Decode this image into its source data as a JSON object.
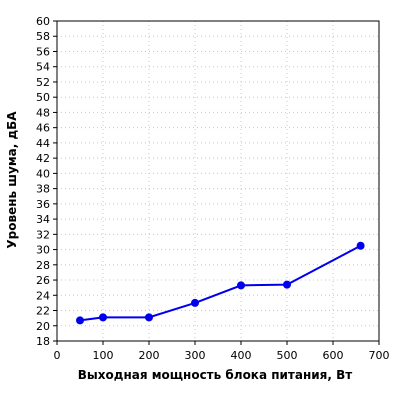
{
  "chart_data": {
    "type": "line",
    "title": "",
    "xlabel": "Выходная мощность блока питания, Вт",
    "ylabel": "Уровень шума, дБА",
    "xlim": [
      0,
      700
    ],
    "ylim": [
      18,
      60
    ],
    "x_ticks": [
      "0",
      "100",
      "200",
      "300",
      "400",
      "500",
      "600",
      "700"
    ],
    "y_ticks": [
      "18",
      "20",
      "22",
      "24",
      "26",
      "28",
      "30",
      "32",
      "34",
      "36",
      "38",
      "40",
      "42",
      "44",
      "46",
      "48",
      "50",
      "52",
      "54",
      "56",
      "58",
      "60"
    ],
    "grid": true,
    "series": [
      {
        "color": "#0000ee",
        "x": [
          50,
          100,
          200,
          300,
          400,
          500,
          660
        ],
        "y": [
          20.7,
          21.1,
          21.1,
          23.0,
          25.3,
          25.4,
          30.5
        ]
      }
    ]
  }
}
